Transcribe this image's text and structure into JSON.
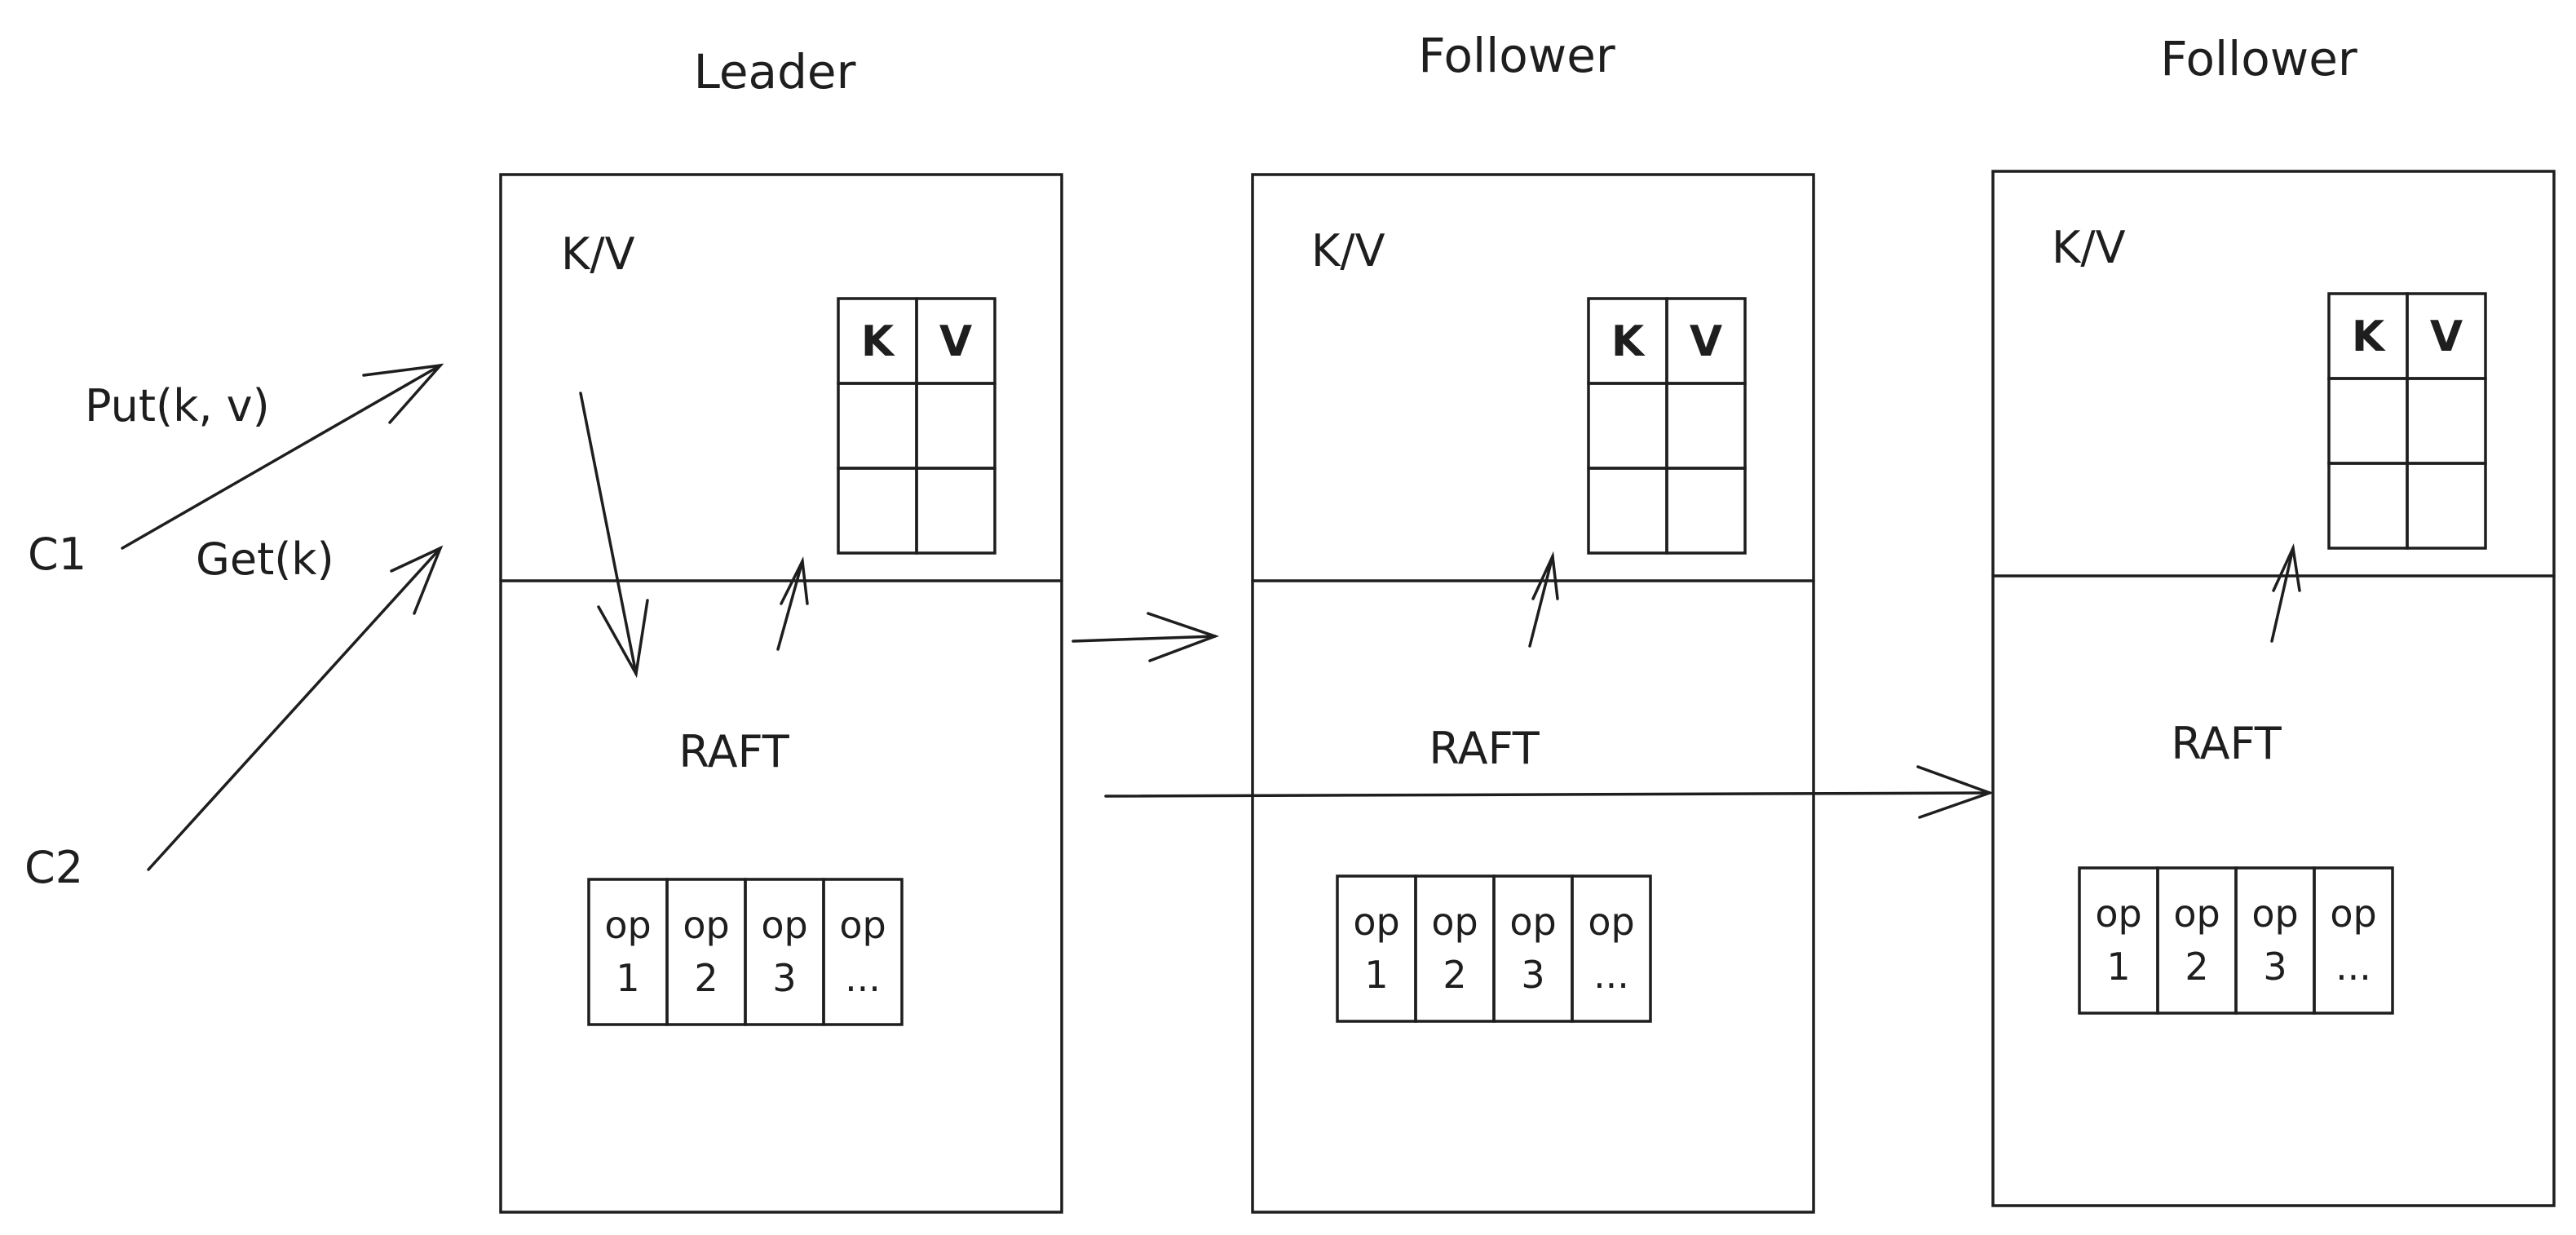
{
  "nodes": [
    {
      "title": "Leader",
      "kv_label": "K/V",
      "raft_label": "RAFT",
      "table_headers": [
        "K",
        "V"
      ],
      "log": [
        {
          "top": "op",
          "bottom": "1"
        },
        {
          "top": "op",
          "bottom": "2"
        },
        {
          "top": "op",
          "bottom": "3"
        },
        {
          "top": "op",
          "bottom": "..."
        }
      ]
    },
    {
      "title": "Follower",
      "kv_label": "K/V",
      "raft_label": "RAFT",
      "table_headers": [
        "K",
        "V"
      ],
      "log": [
        {
          "top": "op",
          "bottom": "1"
        },
        {
          "top": "op",
          "bottom": "2"
        },
        {
          "top": "op",
          "bottom": "3"
        },
        {
          "top": "op",
          "bottom": "..."
        }
      ]
    },
    {
      "title": "Follower",
      "kv_label": "K/V",
      "raft_label": "RAFT",
      "table_headers": [
        "K",
        "V"
      ],
      "log": [
        {
          "top": "op",
          "bottom": "1"
        },
        {
          "top": "op",
          "bottom": "2"
        },
        {
          "top": "op",
          "bottom": "3"
        },
        {
          "top": "op",
          "bottom": "..."
        }
      ]
    }
  ],
  "clients": [
    {
      "name": "C1",
      "request": "Put(k, v)"
    },
    {
      "name": "C2",
      "request": "Get(k)"
    }
  ]
}
